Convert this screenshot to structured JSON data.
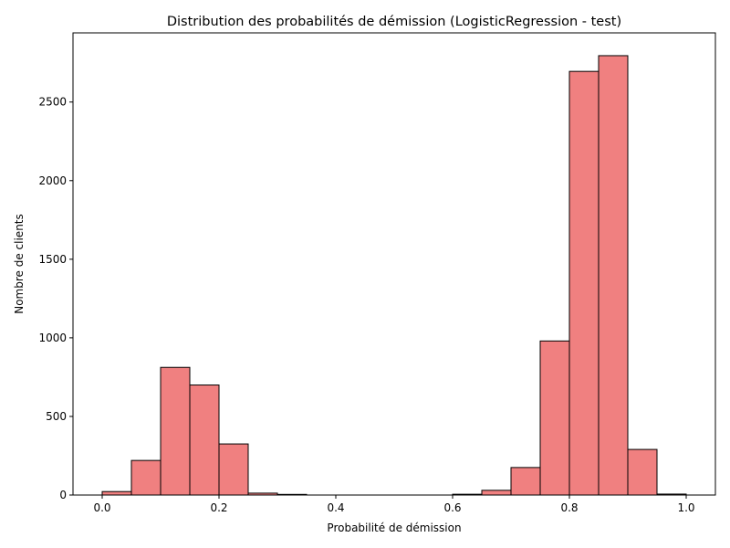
{
  "chart_data": {
    "type": "bar",
    "title": "Distribution des probabilités de démission (LogisticRegression - test)",
    "xlabel": "Probabilité de démission",
    "ylabel": "Nombre de clients",
    "xlim": [
      -0.05,
      1.05
    ],
    "ylim": [
      0,
      2940
    ],
    "xticks": [
      0.0,
      0.2,
      0.4,
      0.6,
      0.8,
      1.0
    ],
    "xtick_labels": [
      "0.0",
      "0.2",
      "0.4",
      "0.6",
      "0.8",
      "1.0"
    ],
    "yticks": [
      0,
      500,
      1000,
      1500,
      2000,
      2500
    ],
    "ytick_labels": [
      "0",
      "500",
      "1000",
      "1500",
      "2000",
      "2500"
    ],
    "bin_edges": [
      0.0,
      0.05,
      0.1,
      0.15,
      0.2,
      0.25,
      0.3,
      0.35,
      0.4,
      0.45,
      0.5,
      0.55,
      0.6,
      0.65,
      0.7,
      0.75,
      0.8,
      0.85,
      0.9,
      0.95,
      1.0
    ],
    "values": [
      22,
      220,
      812,
      700,
      325,
      12,
      4,
      0,
      0,
      0,
      0,
      0,
      5,
      30,
      175,
      980,
      2695,
      2795,
      290,
      6
    ],
    "bar_color": "#f08080",
    "edge_color": "#000000",
    "grid": false,
    "legend": "none"
  }
}
